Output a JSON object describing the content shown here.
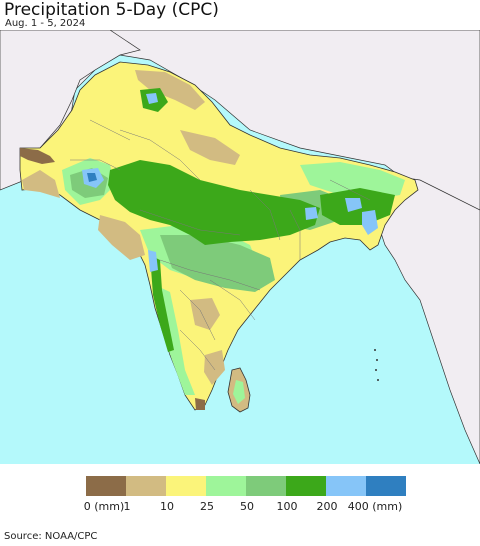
{
  "title": "Precipitation 5-Day (CPC)",
  "subtitle": "Aug. 1 - 5, 2024",
  "legend": {
    "colors": [
      "#8c6c48",
      "#d2bb82",
      "#fbf47a",
      "#9ef59a",
      "#7ecb7a",
      "#3ca81a",
      "#86c5f8",
      "#2f7fc0"
    ],
    "labels": [
      "0 (mm)",
      "1",
      "10",
      "25",
      "50",
      "100",
      "200",
      "400 (mm)"
    ]
  },
  "source": "Source: NOAA/CPC",
  "colors": {
    "ocean": "#b4f9fb",
    "outside_land": "#f1edf2",
    "border": "#222222"
  }
}
